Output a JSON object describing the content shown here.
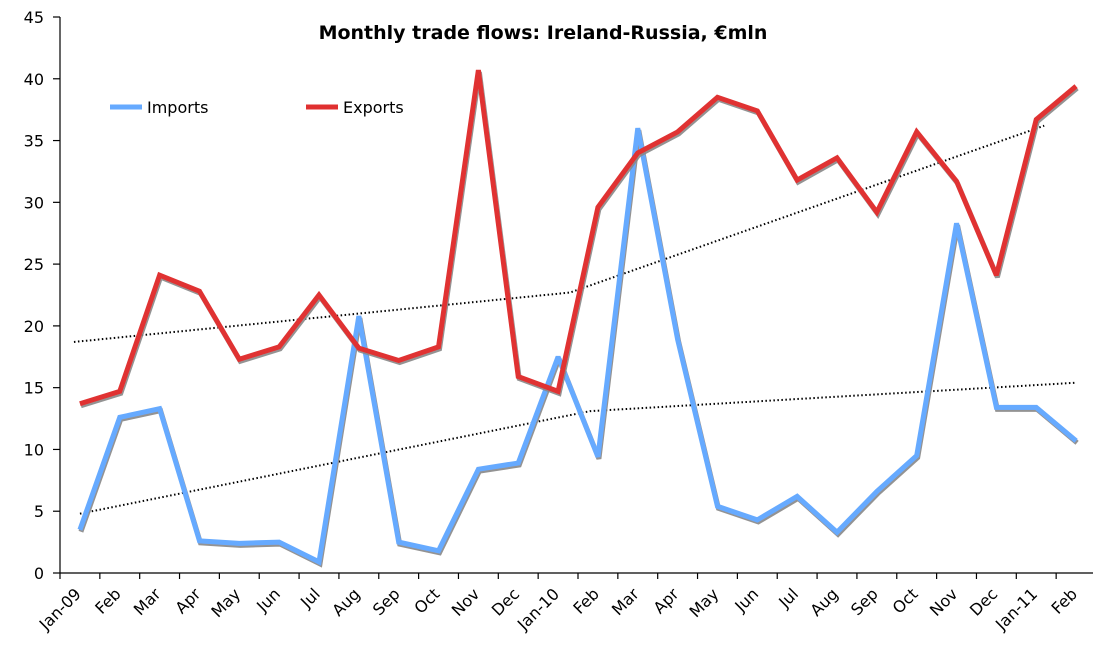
{
  "chart_data": {
    "type": "line",
    "title": "Monthly trade flows: Ireland-Russia, €mln",
    "xlabel": "",
    "ylabel": "",
    "ylim": [
      0,
      45
    ],
    "yticks": [
      0,
      5,
      10,
      15,
      20,
      25,
      30,
      35,
      40,
      45
    ],
    "grid": false,
    "legend_position": "top-left, inside plot",
    "categories": [
      "Jan-09",
      "Feb",
      "Mar",
      "Apr",
      "May",
      "Jun",
      "Jul",
      "Aug",
      "Sep",
      "Oct",
      "Nov",
      "Dec",
      "Jan-10",
      "Feb",
      "Mar",
      "Apr",
      "May",
      "Jun",
      "Jul",
      "Aug",
      "Sep",
      "Oct",
      "Nov",
      "Dec",
      "Jan-11",
      "Feb"
    ],
    "series": [
      {
        "name": "Imports",
        "color": "#66aaff",
        "values": [
          3.5,
          12.6,
          13.3,
          2.6,
          2.4,
          2.5,
          0.9,
          20.8,
          2.5,
          1.8,
          8.4,
          8.9,
          17.5,
          9.4,
          36.0,
          18.9,
          5.4,
          4.3,
          6.2,
          3.3,
          6.6,
          9.5,
          28.3,
          13.4,
          13.4,
          10.7
        ]
      },
      {
        "name": "Exports",
        "color": "#e03030",
        "values": [
          13.7,
          14.7,
          24.1,
          22.8,
          17.3,
          18.3,
          22.5,
          18.2,
          17.2,
          18.3,
          40.7,
          15.9,
          14.7,
          29.6,
          34.0,
          35.7,
          38.5,
          37.4,
          31.8,
          33.6,
          29.2,
          35.7,
          31.7,
          24.1,
          36.7,
          39.4
        ]
      }
    ],
    "trendlines": [
      {
        "series": "Imports",
        "style": "dotted",
        "color": "#000000",
        "points": [
          [
            0,
            4.8
          ],
          [
            12.8,
            13.1
          ],
          [
            25,
            15.4
          ]
        ]
      },
      {
        "series": "Exports",
        "style": "dotted",
        "color": "#000000",
        "points": [
          [
            -0.15,
            18.7
          ],
          [
            12.3,
            22.7
          ],
          [
            24.2,
            36.2
          ]
        ]
      }
    ]
  },
  "legend": {
    "imports_label": "Imports",
    "exports_label": "Exports"
  }
}
